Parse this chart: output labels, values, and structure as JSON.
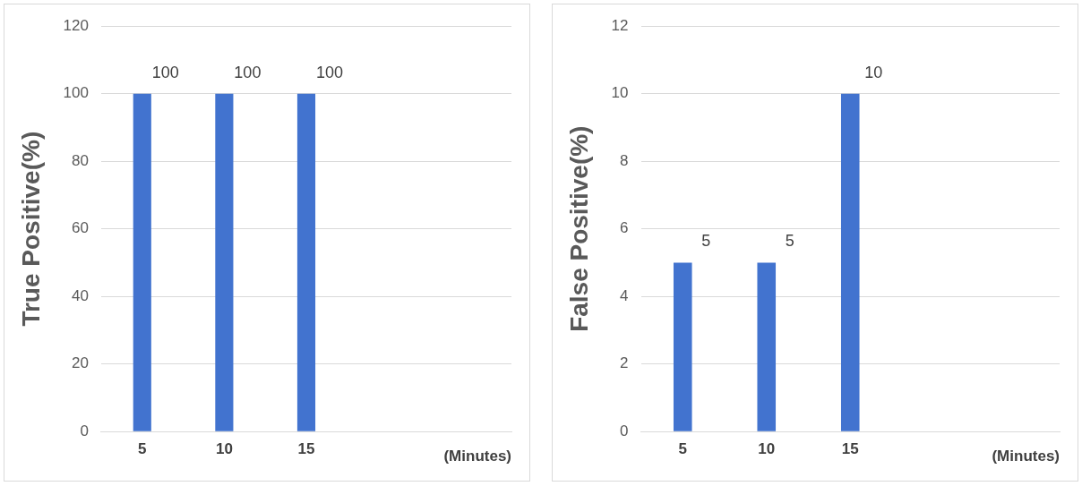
{
  "chart_data": [
    {
      "type": "bar",
      "categories": [
        "5",
        "10",
        "15",
        null,
        null
      ],
      "values": [
        100,
        100,
        100,
        null,
        null
      ],
      "color": "#4273cf",
      "ylabel": "True Positive(%)",
      "xlabel": "(Minutes)",
      "ylim": [
        0,
        120
      ],
      "yticks": [
        0,
        20,
        40,
        60,
        80,
        100,
        120
      ],
      "grid": "y",
      "data_labels": true
    },
    {
      "type": "bar",
      "categories": [
        "5",
        "10",
        "15",
        null,
        null
      ],
      "values": [
        5,
        5,
        10,
        null,
        null
      ],
      "color": "#4273cf",
      "ylabel": "False Positive(%)",
      "xlabel": "(Minutes)",
      "ylim": [
        0,
        12
      ],
      "yticks": [
        0,
        2,
        4,
        6,
        8,
        10,
        12
      ],
      "grid": "y",
      "data_labels": true
    }
  ]
}
